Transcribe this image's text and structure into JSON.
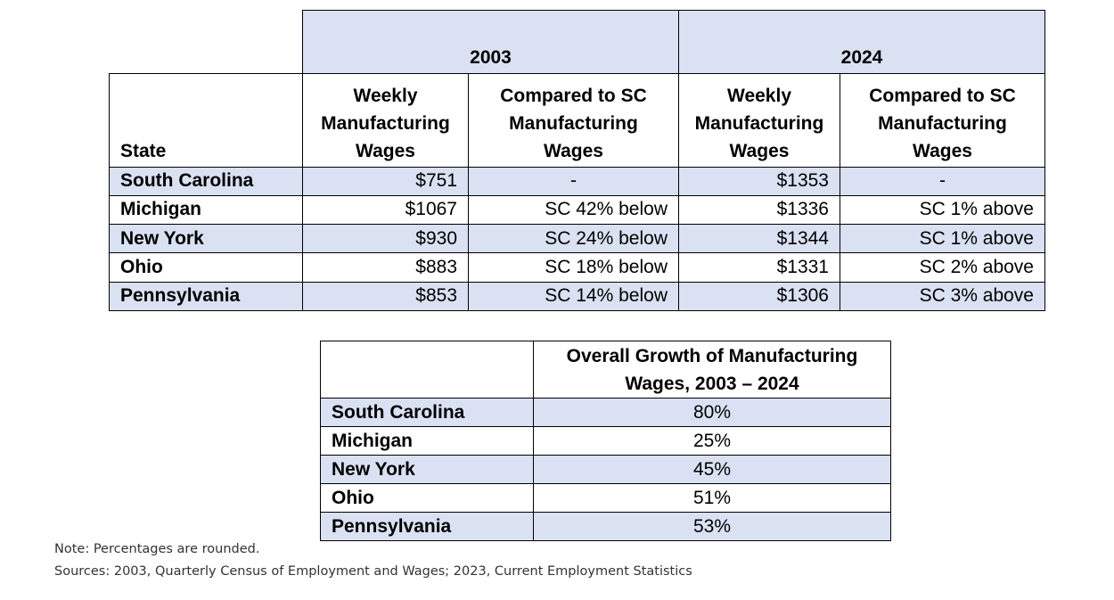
{
  "table1": {
    "year_headers": [
      "2003",
      "2024"
    ],
    "columns": {
      "state": "State",
      "weekly_line1": "Weekly",
      "weekly_line2": "Manufacturing",
      "weekly_line3": "Wages",
      "compared_line1": "Compared to SC",
      "compared_line2": "Manufacturing",
      "compared_line3": "Wages"
    },
    "rows": [
      {
        "state": "South Carolina",
        "w2003": "$751",
        "c2003": "-",
        "w2024": "$1353",
        "c2024": "-"
      },
      {
        "state": "Michigan",
        "w2003": "$1067",
        "c2003": "SC 42% below",
        "w2024": "$1336",
        "c2024": "SC 1% above"
      },
      {
        "state": "New York",
        "w2003": "$930",
        "c2003": "SC 24% below",
        "w2024": "$1344",
        "c2024": "SC 1% above"
      },
      {
        "state": "Ohio",
        "w2003": "$883",
        "c2003": "SC 18% below",
        "w2024": "$1331",
        "c2024": "SC 2% above"
      },
      {
        "state": "Pennsylvania",
        "w2003": "$853",
        "c2003": "SC 14% below",
        "w2024": "$1306",
        "c2024": "SC 3% above"
      }
    ]
  },
  "table2": {
    "header_line1": "Overall Growth of Manufacturing",
    "header_line2": "Wages, 2003 – 2024",
    "rows": [
      {
        "state": "South Carolina",
        "growth": "80%"
      },
      {
        "state": "Michigan",
        "growth": "25%"
      },
      {
        "state": "New York",
        "growth": "45%"
      },
      {
        "state": "Ohio",
        "growth": "51%"
      },
      {
        "state": "Pennsylvania",
        "growth": "53%"
      }
    ]
  },
  "notes": {
    "note": "Note: Percentages are rounded.",
    "sources": "Sources: 2003, Quarterly Census of Employment and Wages; 2023, Current Employment Statistics"
  },
  "colors": {
    "row_highlight": "#d9e1f2",
    "border": "#000000"
  }
}
